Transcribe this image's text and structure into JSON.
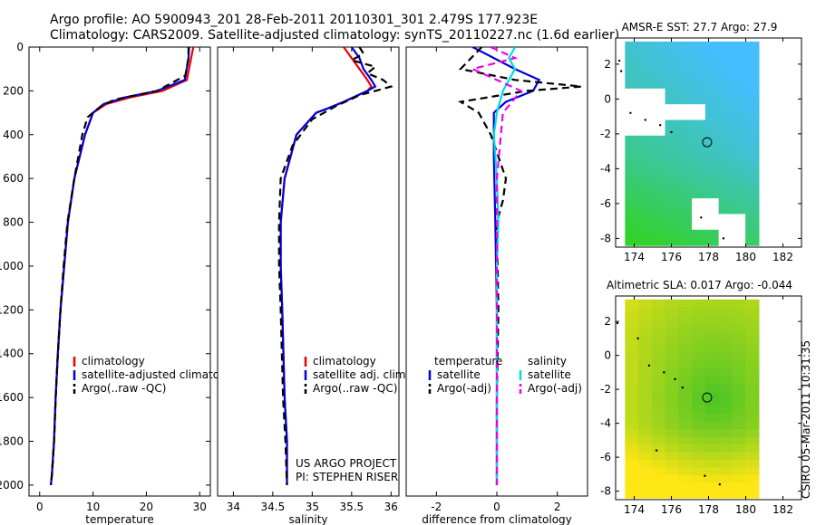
{
  "header": {
    "line1": "Argo profile: AO 5900943_201 28-Feb-2011 20110301_301 2.479S 177.923E",
    "line2": "Climatology: CARS2009. Satellite-adjusted climatology: synTS_20110227.nc (1.6d earlier)"
  },
  "side_label": "CSIRO 05-Mar-2011 10:31:35",
  "chart_data": [
    {
      "id": "temperature-profile",
      "type": "line",
      "xlabel": "temperature",
      "ylabel": "",
      "xlim": [
        -2,
        32
      ],
      "ylim": [
        0,
        2050
      ],
      "y_inverted": true,
      "xticks": [
        0,
        10,
        20,
        30
      ],
      "yticks": [
        0,
        200,
        400,
        600,
        800,
        1000,
        1200,
        1400,
        1600,
        1800,
        2000
      ],
      "legend": {
        "position": "lower-middle",
        "entries": [
          "climatology",
          "satellite-adjusted climatology",
          "Argo(..raw -QC)"
        ]
      },
      "annotations": [],
      "series": [
        {
          "name": "climatology",
          "color": "#ee0000",
          "dash": "solid",
          "x": [
            28.8,
            28.4,
            27.6,
            23.0,
            17.0,
            12.5,
            10.0,
            8.5,
            6.5,
            5.3,
            4.6,
            3.9,
            3.4,
            3.0,
            2.7,
            2.3,
            2.1
          ],
          "y": [
            0,
            50,
            150,
            200,
            230,
            260,
            300,
            400,
            600,
            800,
            1000,
            1200,
            1400,
            1600,
            1800,
            1950,
            2000
          ]
        },
        {
          "name": "satellite-adjusted climatology",
          "color": "#0000dd",
          "dash": "solid",
          "x": [
            28.0,
            27.9,
            27.2,
            22.0,
            16.0,
            12.0,
            10.0,
            8.5,
            6.5,
            5.3,
            4.6,
            3.9,
            3.4,
            3.0,
            2.7,
            2.3,
            2.1
          ],
          "y": [
            0,
            50,
            150,
            200,
            230,
            260,
            300,
            400,
            600,
            800,
            1000,
            1200,
            1400,
            1600,
            1800,
            1950,
            2000
          ]
        },
        {
          "name": "Argo(..raw -QC)",
          "color": "#000000",
          "dash": "dashed",
          "x": [
            27.9,
            27.9,
            27.3,
            22.0,
            14.0,
            11.5,
            9.0,
            8.0,
            6.5,
            5.2,
            4.5,
            3.9,
            3.4,
            3.0,
            2.7,
            2.3,
            2.1
          ],
          "y": [
            0,
            50,
            130,
            200,
            240,
            270,
            320,
            400,
            600,
            800,
            1000,
            1200,
            1400,
            1600,
            1800,
            1950,
            2000
          ]
        }
      ]
    },
    {
      "id": "salinity-profile",
      "type": "line",
      "xlabel": "salinity",
      "ylabel": "",
      "xlim": [
        33.8,
        36.1
      ],
      "ylim": [
        0,
        2050
      ],
      "y_inverted": true,
      "xticks": [
        34,
        34.5,
        35,
        35.5,
        36
      ],
      "yticks": [],
      "legend": {
        "position": "lower-middle",
        "entries": [
          "climatology",
          "satellite adj. clim.",
          "Argo(..raw -QC)"
        ]
      },
      "annotations": [
        "US ARGO PROJECT",
        "PI: STEPHEN RISER"
      ],
      "series": [
        {
          "name": "climatology",
          "color": "#ee0000",
          "dash": "solid",
          "x": [
            35.4,
            35.5,
            35.6,
            35.7,
            35.75,
            35.7,
            35.4,
            35.2,
            35.05,
            34.8,
            34.65,
            34.6,
            34.6,
            34.62,
            34.65,
            34.68,
            34.68
          ],
          "y": [
            0,
            50,
            100,
            150,
            180,
            200,
            250,
            280,
            300,
            400,
            600,
            800,
            1000,
            1200,
            1600,
            1800,
            2000
          ]
        },
        {
          "name": "satellite adj. clim.",
          "color": "#0000dd",
          "dash": "solid",
          "x": [
            35.5,
            35.6,
            35.65,
            35.75,
            35.8,
            35.7,
            35.4,
            35.2,
            35.05,
            34.8,
            34.65,
            34.6,
            34.6,
            34.62,
            34.65,
            34.68,
            34.68
          ],
          "y": [
            0,
            50,
            100,
            150,
            180,
            200,
            250,
            280,
            300,
            400,
            600,
            800,
            1000,
            1200,
            1600,
            1800,
            2000
          ]
        },
        {
          "name": "Argo(..raw -QC)",
          "color": "#000000",
          "dash": "dashed",
          "x": [
            35.6,
            35.65,
            35.5,
            35.8,
            35.7,
            35.9,
            36.0,
            35.6,
            35.3,
            35.0,
            34.75,
            34.6,
            34.58,
            34.58,
            34.6,
            34.63,
            34.66,
            34.68
          ],
          "y": [
            0,
            30,
            60,
            90,
            120,
            150,
            180,
            220,
            270,
            330,
            450,
            600,
            800,
            1000,
            1200,
            1600,
            1800,
            2000
          ]
        }
      ]
    },
    {
      "id": "difference-profile",
      "type": "line",
      "xlabel": "difference from climatology",
      "ylabel": "",
      "xlim": [
        -3,
        3
      ],
      "ylim": [
        0,
        2050
      ],
      "y_inverted": true,
      "xticks": [
        -2,
        0,
        2
      ],
      "yticks": [],
      "legend": {
        "position": "lower-middle",
        "entries": [
          "temperature",
          "satellite",
          "Argo(-adj)",
          "salinity",
          "satellite",
          "Argo(-adj)"
        ]
      },
      "annotations": [],
      "series": [
        {
          "name": "temperature satellite",
          "color": "#0000dd",
          "dash": "solid",
          "x": [
            -0.8,
            0.6,
            1.4,
            1.2,
            0.3,
            -0.1,
            -0.1,
            -0.05,
            0.0,
            0.0,
            0.0,
            0.0
          ],
          "y": [
            0,
            100,
            150,
            200,
            250,
            300,
            500,
            800,
            1200,
            1600,
            1800,
            2000
          ]
        },
        {
          "name": "temperature Argo(-adj)",
          "color": "#000000",
          "dash": "dashed",
          "x": [
            -0.5,
            -1.2,
            0.6,
            2.8,
            1.0,
            -1.2,
            -0.6,
            -0.2,
            0.3,
            0.2,
            0.0,
            0.05,
            0.0,
            0.0
          ],
          "y": [
            0,
            100,
            150,
            180,
            200,
            250,
            300,
            400,
            600,
            700,
            800,
            1200,
            1600,
            2000
          ]
        },
        {
          "name": "salinity satellite",
          "color": "#00dddd",
          "dash": "solid",
          "x": [
            0.6,
            0.4,
            0.6,
            0.2,
            0.0,
            -0.1,
            0.0,
            0.05,
            0.0,
            0.0,
            0.0,
            0.0
          ],
          "y": [
            0,
            50,
            100,
            200,
            300,
            400,
            600,
            800,
            1000,
            1200,
            1600,
            2000
          ]
        },
        {
          "name": "salinity Argo(-adj)",
          "color": "#ee00ee",
          "dash": "dashed",
          "x": [
            -0.2,
            0.6,
            -0.8,
            0.8,
            0.2,
            0.0,
            0.0,
            0.0
          ],
          "y": [
            0,
            50,
            100,
            200,
            300,
            600,
            1200,
            2000
          ]
        }
      ]
    },
    {
      "id": "sst-map",
      "type": "heatmap",
      "title": "AMSR-E SST: 27.7  Argo: 27.9",
      "xlim": [
        173,
        183
      ],
      "ylim": [
        -8.5,
        3.5
      ],
      "xticks": [
        174,
        176,
        178,
        180,
        182
      ],
      "yticks": [
        2,
        0,
        -2,
        -4,
        -6,
        -8
      ],
      "marker": {
        "lon": 177.923,
        "lat": -2.479
      },
      "data_extent_lon": [
        173,
        180.1
      ],
      "data_extent_lat": [
        -8.4,
        3.4
      ],
      "colorscale": "cool (green=low, blue=high)",
      "field": {
        "lon0": 173.5,
        "lat0": 3.3,
        "dlon": 0.72,
        "dlat": 0.45,
        "ncol": 10,
        "nrow": 27,
        "min": 27.4,
        "max": 28.2,
        "pattern": "cool SW, warm NE"
      }
    },
    {
      "id": "sla-map",
      "type": "heatmap",
      "title": "Altimetric SLA: 0.017  Argo: -0.044",
      "xlim": [
        173,
        183
      ],
      "ylim": [
        -8.5,
        3.5
      ],
      "xticks": [
        174,
        176,
        178,
        180,
        182
      ],
      "yticks": [
        2,
        0,
        -2,
        -4,
        -6,
        -8
      ],
      "marker": {
        "lon": 177.923,
        "lat": -2.479
      },
      "data_extent_lon": [
        173,
        180.1
      ],
      "data_extent_lat": [
        -8.4,
        3.4
      ],
      "colorscale": "green (low) to yellow (high)",
      "field": {
        "lon0": 173.5,
        "lat0": 3.3,
        "dlon": 0.72,
        "dlat": 0.45,
        "ncol": 10,
        "nrow": 27,
        "min": -0.05,
        "max": 0.07,
        "pattern": "low near marker, high south"
      }
    }
  ]
}
